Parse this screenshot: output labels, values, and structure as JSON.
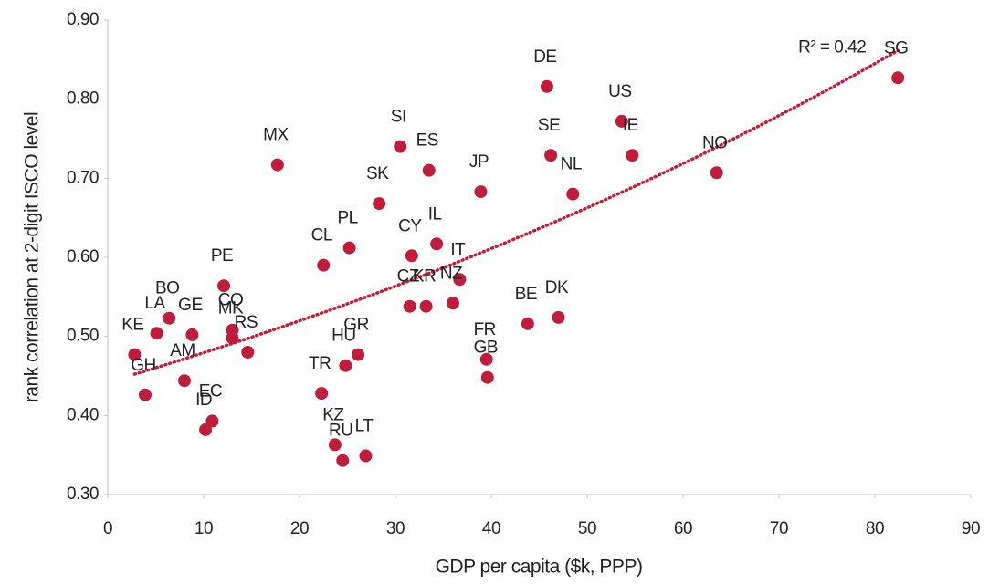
{
  "chart_data": {
    "type": "scatter",
    "x_label": "GDP per capita ($k, PPP)",
    "y_label": "rank correlation at 2-digit ISCO level",
    "xlim": [
      0,
      90
    ],
    "xticks": [
      0,
      10,
      20,
      30,
      40,
      50,
      60,
      70,
      80,
      90
    ],
    "ylim": [
      0.3,
      0.9
    ],
    "yticks": [
      {
        "value": 0.3,
        "label": "0.30"
      },
      {
        "value": 0.4,
        "label": "0.40"
      },
      {
        "value": 0.5,
        "label": "0.50"
      },
      {
        "value": 0.6,
        "label": "0.60"
      },
      {
        "value": 0.7,
        "label": "0.70"
      },
      {
        "value": 0.8,
        "label": "0.80"
      },
      {
        "value": 0.9,
        "label": "0.90"
      }
    ],
    "color": "#be1e3c",
    "labels": [
      "SG",
      "DE",
      "US",
      "IE",
      "SE",
      "NO",
      "NL",
      "JP",
      "SI",
      "ES",
      "MX",
      "SK",
      "PL",
      "CL",
      "CY",
      "IL",
      "IT",
      "CZ",
      "KR",
      "NZ",
      "BE",
      "DK",
      "FR",
      "GB",
      "PE",
      "CO",
      "MK",
      "RS",
      "BO",
      "LA",
      "GE",
      "KE",
      "GH",
      "AM",
      "EC",
      "ID",
      "GR",
      "HU",
      "TR",
      "KZ",
      "RU",
      "LT"
    ],
    "x": [
      82.4,
      45.8,
      53.6,
      54.7,
      46.2,
      63.5,
      48.5,
      38.9,
      30.5,
      33.5,
      17.7,
      28.3,
      25.2,
      22.5,
      31.7,
      34.3,
      36.7,
      31.5,
      33.2,
      36.0,
      43.8,
      47.0,
      39.5,
      39.6,
      12.1,
      13.0,
      13.0,
      14.6,
      6.4,
      5.1,
      8.8,
      2.8,
      3.9,
      8.0,
      10.9,
      10.2,
      26.1,
      24.8,
      22.3,
      23.7,
      24.5,
      26.9
    ],
    "y": [
      0.827,
      0.816,
      0.772,
      0.729,
      0.729,
      0.707,
      0.68,
      0.683,
      0.74,
      0.71,
      0.717,
      0.668,
      0.612,
      0.59,
      0.602,
      0.617,
      0.572,
      0.538,
      0.538,
      0.542,
      0.516,
      0.524,
      0.471,
      0.448,
      0.564,
      0.508,
      0.498,
      0.48,
      0.523,
      0.504,
      0.502,
      0.477,
      0.426,
      0.444,
      0.393,
      0.382,
      0.477,
      0.463,
      0.428,
      0.363,
      0.343,
      0.349
    ],
    "trendline": {
      "type": "exponential",
      "a": 0.442,
      "b": 0.0081,
      "x": [
        2.8,
        82.4
      ],
      "annotation": "R² = 0.42"
    }
  }
}
